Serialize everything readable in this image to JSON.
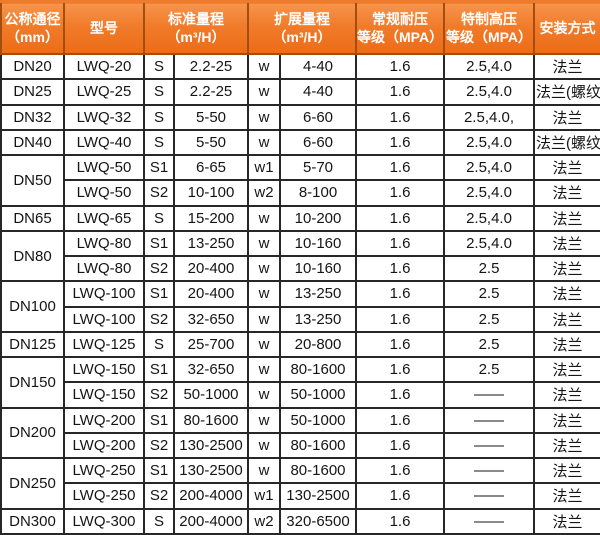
{
  "colors": {
    "header_bg": "#ee7120",
    "header_bg_light": "#f7944c",
    "header_border": "#a24e0e",
    "header_text": "#ffffff",
    "grid": "#272727",
    "cell_bg": "#ffffff",
    "cell_text": "#151515"
  },
  "chart_data": {
    "type": "table",
    "title": "",
    "columns": [
      {
        "line1": "公称通径",
        "line2": "（mm）",
        "colspan": 1
      },
      {
        "line1": "型号",
        "line2": "",
        "colspan": 1
      },
      {
        "line1": "标准量程",
        "line2": "（m³/H）",
        "colspan": 2
      },
      {
        "line1": "扩展量程",
        "line2": "（m³/H）",
        "colspan": 2
      },
      {
        "line1": "常规耐压",
        "line2": "等级（MPA）",
        "colspan": 1
      },
      {
        "line1": "特制高压",
        "line2": "等级（MPA）",
        "colspan": 1
      },
      {
        "line1": "安装方式",
        "line2": "",
        "colspan": 1
      }
    ],
    "rows": [
      {
        "dn": "DN20",
        "dn_rowspan": 1,
        "model": "LWQ-20",
        "std_code": "S",
        "std_range": "2.2-25",
        "ext_code": "w",
        "ext_range": "4-40",
        "pressure": "1.6",
        "high_pressure": "2.5,4.0",
        "install": "法兰"
      },
      {
        "dn": "DN25",
        "dn_rowspan": 1,
        "model": "LWQ-25",
        "std_code": "S",
        "std_range": "2.2-25",
        "ext_code": "w",
        "ext_range": "4-40",
        "pressure": "1.6",
        "high_pressure": "2.5,4.0",
        "install": "法兰(螺纹)"
      },
      {
        "dn": "DN32",
        "dn_rowspan": 1,
        "model": "LWQ-32",
        "std_code": "S",
        "std_range": "5-50",
        "ext_code": "w",
        "ext_range": "6-60",
        "pressure": "1.6",
        "high_pressure": "2.5,4.0,",
        "install": "法兰"
      },
      {
        "dn": "DN40",
        "dn_rowspan": 1,
        "model": "LWQ-40",
        "std_code": "S",
        "std_range": "5-50",
        "ext_code": "w",
        "ext_range": "6-60",
        "pressure": "1.6",
        "high_pressure": "2.5,4.0",
        "install": "法兰(螺纹)"
      },
      {
        "dn": "DN50",
        "dn_rowspan": 2,
        "model": "LWQ-50",
        "std_code": "S1",
        "std_range": "6-65",
        "ext_code": "w1",
        "ext_range": "5-70",
        "pressure": "1.6",
        "high_pressure": "2.5,4.0",
        "install": "法兰"
      },
      {
        "dn": null,
        "dn_rowspan": 0,
        "model": "LWQ-50",
        "std_code": "S2",
        "std_range": "10-100",
        "ext_code": "w2",
        "ext_range": "8-100",
        "pressure": "1.6",
        "high_pressure": "2.5,4.0",
        "install": "法兰"
      },
      {
        "dn": "DN65",
        "dn_rowspan": 1,
        "model": "LWQ-65",
        "std_code": "S",
        "std_range": "15-200",
        "ext_code": "w",
        "ext_range": "10-200",
        "pressure": "1.6",
        "high_pressure": "2.5,4.0",
        "install": "法兰"
      },
      {
        "dn": "DN80",
        "dn_rowspan": 2,
        "model": "LWQ-80",
        "std_code": "S1",
        "std_range": "13-250",
        "ext_code": "w",
        "ext_range": "10-160",
        "pressure": "1.6",
        "high_pressure": "2.5,4.0",
        "install": "法兰"
      },
      {
        "dn": null,
        "dn_rowspan": 0,
        "model": "LWQ-80",
        "std_code": "S2",
        "std_range": "20-400",
        "ext_code": "w",
        "ext_range": "10-160",
        "pressure": "1.6",
        "high_pressure": "2.5",
        "install": "法兰"
      },
      {
        "dn": "DN100",
        "dn_rowspan": 2,
        "model": "LWQ-100",
        "std_code": "S1",
        "std_range": "20-400",
        "ext_code": "w",
        "ext_range": "13-250",
        "pressure": "1.6",
        "high_pressure": "2.5",
        "install": "法兰"
      },
      {
        "dn": null,
        "dn_rowspan": 0,
        "model": "LWQ-100",
        "std_code": "S2",
        "std_range": "32-650",
        "ext_code": "w",
        "ext_range": "13-250",
        "pressure": "1.6",
        "high_pressure": "2.5",
        "install": "法兰"
      },
      {
        "dn": "DN125",
        "dn_rowspan": 1,
        "model": "LWQ-125",
        "std_code": "S",
        "std_range": "25-700",
        "ext_code": "w",
        "ext_range": "20-800",
        "pressure": "1.6",
        "high_pressure": "2.5",
        "install": "法兰"
      },
      {
        "dn": "DN150",
        "dn_rowspan": 2,
        "model": "LWQ-150",
        "std_code": "S1",
        "std_range": "32-650",
        "ext_code": "w",
        "ext_range": "80-1600",
        "pressure": "1.6",
        "high_pressure": "2.5",
        "install": "法兰"
      },
      {
        "dn": null,
        "dn_rowspan": 0,
        "model": "LWQ-150",
        "std_code": "S2",
        "std_range": "50-1000",
        "ext_code": "w",
        "ext_range": "50-1000",
        "pressure": "1.6",
        "high_pressure": "——",
        "install": "法兰"
      },
      {
        "dn": "DN200",
        "dn_rowspan": 2,
        "model": "LWQ-200",
        "std_code": "S1",
        "std_range": "80-1600",
        "ext_code": "w",
        "ext_range": "50-1000",
        "pressure": "1.6",
        "high_pressure": "——",
        "install": "法兰"
      },
      {
        "dn": null,
        "dn_rowspan": 0,
        "model": "LWQ-200",
        "std_code": "S2",
        "std_range": "130-2500",
        "ext_code": "w",
        "ext_range": "80-1600",
        "pressure": "1.6",
        "high_pressure": "——",
        "install": "法兰"
      },
      {
        "dn": "DN250",
        "dn_rowspan": 2,
        "model": "LWQ-250",
        "std_code": "S1",
        "std_range": "130-2500",
        "ext_code": "w",
        "ext_range": "80-1600",
        "pressure": "1.6",
        "high_pressure": "——",
        "install": "法兰"
      },
      {
        "dn": null,
        "dn_rowspan": 0,
        "model": "LWQ-250",
        "std_code": "S2",
        "std_range": "200-4000",
        "ext_code": "w1",
        "ext_range": "130-2500",
        "pressure": "1.6",
        "high_pressure": "——",
        "install": "法兰"
      },
      {
        "dn": "DN300",
        "dn_rowspan": 1,
        "model": "LWQ-300",
        "std_code": "S",
        "std_range": "200-4000",
        "ext_code": "w2",
        "ext_range": "320-6500",
        "pressure": "1.6",
        "high_pressure": "——",
        "install": "法兰"
      }
    ]
  }
}
